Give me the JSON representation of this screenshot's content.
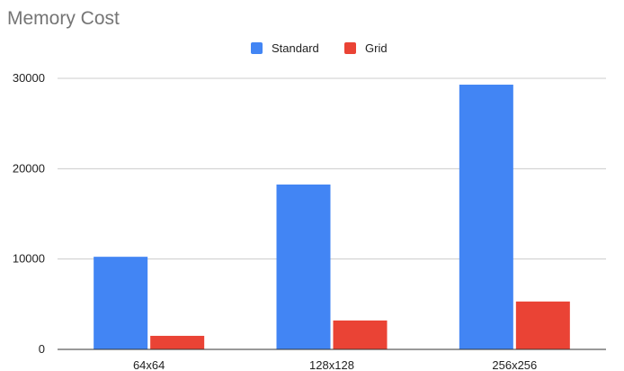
{
  "chart_data": {
    "type": "bar",
    "title": "Memory Cost",
    "xlabel": "",
    "ylabel": "",
    "categories": [
      "64x64",
      "128x128",
      "256x256"
    ],
    "series": [
      {
        "name": "Standard",
        "color": "#4285F4",
        "values": [
          10250,
          18250,
          29300
        ]
      },
      {
        "name": "Grid",
        "color": "#EA4335",
        "values": [
          1500,
          3200,
          5300
        ]
      }
    ],
    "ylim": [
      0,
      30000
    ],
    "yticks": [
      0,
      10000,
      20000,
      30000
    ],
    "ytick_labels": [
      "0",
      "10000",
      "20000",
      "30000"
    ],
    "grid": true,
    "legend_position": "top"
  }
}
